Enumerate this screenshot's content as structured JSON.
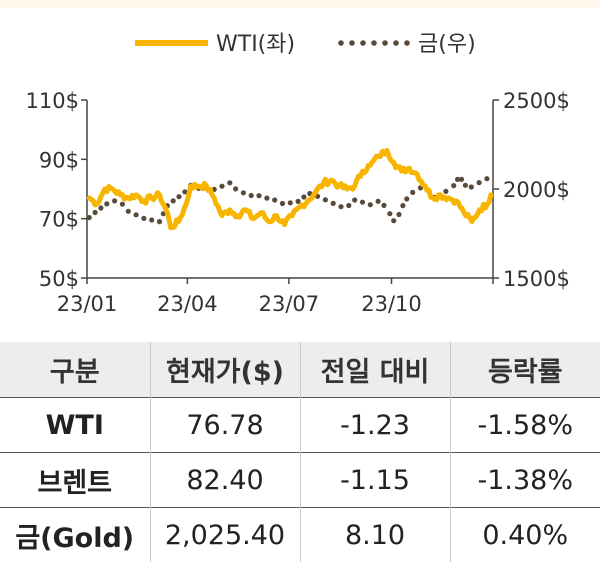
{
  "chart_data": {
    "type": "line",
    "x_ticks": [
      "23/01",
      "23/04",
      "23/07",
      "23/10"
    ],
    "y_left": {
      "ticks": [
        "110$",
        "90$",
        "70$",
        "50$"
      ],
      "range": [
        50,
        110
      ],
      "tick_values": [
        110,
        90,
        70,
        50
      ]
    },
    "y_right": {
      "ticks": [
        "2500$",
        "2000$",
        "1500$"
      ],
      "range": [
        1500,
        2500
      ],
      "tick_values": [
        2500,
        2000,
        1500
      ]
    },
    "x_range": [
      "2023-01-01",
      "2023-12-31"
    ],
    "legend_position": "top",
    "series": [
      {
        "name": "WTI(좌)",
        "axis": "left",
        "color": "#f7b500",
        "style": "solid",
        "points": [
          [
            "2023-01-03",
            77
          ],
          [
            "2023-01-10",
            75
          ],
          [
            "2023-01-17",
            80
          ],
          [
            "2023-01-24",
            80
          ],
          [
            "2023-01-31",
            78
          ],
          [
            "2023-02-07",
            77
          ],
          [
            "2023-02-14",
            78
          ],
          [
            "2023-02-21",
            76
          ],
          [
            "2023-02-28",
            77
          ],
          [
            "2023-03-07",
            78
          ],
          [
            "2023-03-14",
            72
          ],
          [
            "2023-03-17",
            67
          ],
          [
            "2023-03-24",
            69
          ],
          [
            "2023-03-31",
            75
          ],
          [
            "2023-04-04",
            81
          ],
          [
            "2023-04-11",
            81
          ],
          [
            "2023-04-18",
            81
          ],
          [
            "2023-04-25",
            77
          ],
          [
            "2023-05-02",
            71
          ],
          [
            "2023-05-09",
            73
          ],
          [
            "2023-05-16",
            71
          ],
          [
            "2023-05-23",
            73
          ],
          [
            "2023-05-30",
            70
          ],
          [
            "2023-06-06",
            72
          ],
          [
            "2023-06-13",
            69
          ],
          [
            "2023-06-20",
            71
          ],
          [
            "2023-06-27",
            68
          ],
          [
            "2023-07-04",
            71
          ],
          [
            "2023-07-11",
            74
          ],
          [
            "2023-07-18",
            76
          ],
          [
            "2023-07-25",
            79
          ],
          [
            "2023-08-01",
            82
          ],
          [
            "2023-08-08",
            83
          ],
          [
            "2023-08-15",
            81
          ],
          [
            "2023-08-22",
            80
          ],
          [
            "2023-08-29",
            81
          ],
          [
            "2023-09-05",
            86
          ],
          [
            "2023-09-12",
            88
          ],
          [
            "2023-09-19",
            91
          ],
          [
            "2023-09-27",
            93
          ],
          [
            "2023-10-03",
            89
          ],
          [
            "2023-10-10",
            86
          ],
          [
            "2023-10-17",
            87
          ],
          [
            "2023-10-24",
            85
          ],
          [
            "2023-10-31",
            81
          ],
          [
            "2023-11-07",
            77
          ],
          [
            "2023-11-14",
            78
          ],
          [
            "2023-11-21",
            77
          ],
          [
            "2023-11-28",
            76
          ],
          [
            "2023-12-05",
            72
          ],
          [
            "2023-12-12",
            69
          ],
          [
            "2023-12-19",
            73
          ],
          [
            "2023-12-26",
            75
          ],
          [
            "2023-12-29",
            78
          ]
        ]
      },
      {
        "name": "금(우)",
        "axis": "right",
        "color": "#5a4a3a",
        "style": "dotted",
        "points": [
          [
            "2023-01-03",
            1840
          ],
          [
            "2023-01-10",
            1877
          ],
          [
            "2023-01-17",
            1910
          ],
          [
            "2023-01-24",
            1935
          ],
          [
            "2023-01-31",
            1928
          ],
          [
            "2023-02-07",
            1875
          ],
          [
            "2023-02-14",
            1855
          ],
          [
            "2023-02-21",
            1835
          ],
          [
            "2023-02-28",
            1826
          ],
          [
            "2023-03-07",
            1817
          ],
          [
            "2023-03-14",
            1906
          ],
          [
            "2023-03-21",
            1942
          ],
          [
            "2023-03-28",
            1972
          ],
          [
            "2023-04-04",
            2020
          ],
          [
            "2023-04-11",
            2004
          ],
          [
            "2023-04-18",
            2005
          ],
          [
            "2023-04-25",
            1998
          ],
          [
            "2023-05-02",
            2016
          ],
          [
            "2023-05-09",
            2035
          ],
          [
            "2023-05-16",
            1989
          ],
          [
            "2023-05-23",
            1975
          ],
          [
            "2023-05-30",
            1960
          ],
          [
            "2023-06-06",
            1963
          ],
          [
            "2023-06-13",
            1944
          ],
          [
            "2023-06-20",
            1936
          ],
          [
            "2023-06-27",
            1913
          ],
          [
            "2023-07-04",
            1926
          ],
          [
            "2023-07-11",
            1932
          ],
          [
            "2023-07-18",
            1978
          ],
          [
            "2023-07-25",
            1964
          ],
          [
            "2023-08-01",
            1944
          ],
          [
            "2023-08-08",
            1925
          ],
          [
            "2023-08-15",
            1902
          ],
          [
            "2023-08-22",
            1897
          ],
          [
            "2023-08-29",
            1938
          ],
          [
            "2023-09-05",
            1926
          ],
          [
            "2023-09-12",
            1912
          ],
          [
            "2023-09-19",
            1931
          ],
          [
            "2023-09-26",
            1900
          ],
          [
            "2023-10-03",
            1822
          ],
          [
            "2023-10-06",
            1832
          ],
          [
            "2023-10-13",
            1932
          ],
          [
            "2023-10-20",
            1981
          ],
          [
            "2023-10-27",
            2006
          ],
          [
            "2023-11-03",
            1993
          ],
          [
            "2023-11-10",
            1940
          ],
          [
            "2023-11-17",
            1981
          ],
          [
            "2023-11-24",
            2002
          ],
          [
            "2023-12-01",
            2071
          ],
          [
            "2023-12-08",
            2004
          ],
          [
            "2023-12-15",
            2019
          ],
          [
            "2023-12-22",
            2053
          ],
          [
            "2023-12-29",
            2063
          ]
        ]
      }
    ]
  },
  "table": {
    "headers": [
      "구분",
      "현재가($)",
      "전일 대비",
      "등락률"
    ],
    "rows": [
      {
        "label": "WTI",
        "price": "76.78",
        "change": "-1.23",
        "rate": "-1.58%"
      },
      {
        "label": "브렌트",
        "price": "82.40",
        "change": "-1.15",
        "rate": "-1.38%"
      },
      {
        "label": "금(Gold)",
        "price": "2,025.40",
        "change": "8.10",
        "rate": "0.40%"
      }
    ]
  }
}
